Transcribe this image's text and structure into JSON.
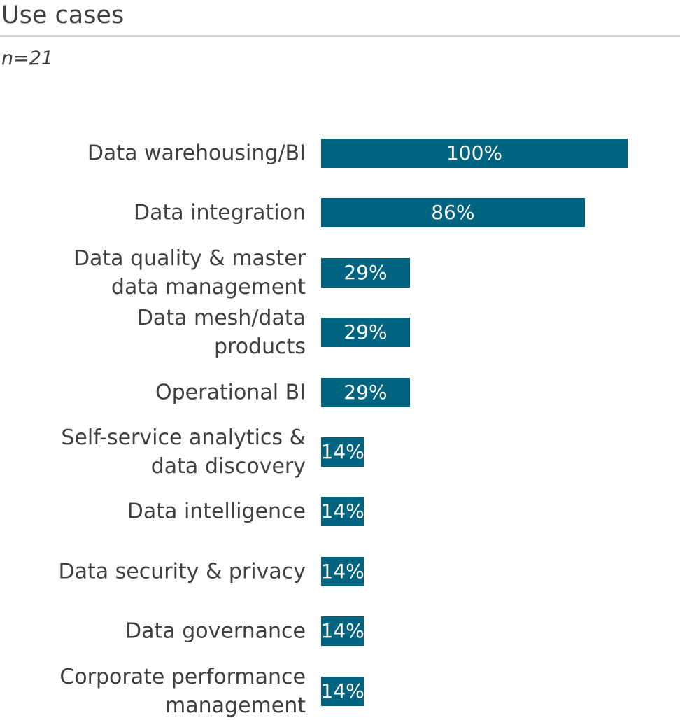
{
  "title": "Use cases",
  "subtitle": "n=21",
  "chart_data": {
    "type": "bar",
    "orientation": "horizontal",
    "title": "Use cases",
    "subtitle": "n=21",
    "categories": [
      "Data warehousing/BI",
      "Data integration",
      "Data quality & master data management",
      "Data mesh/data products",
      "Operational BI",
      "Self-service analytics & data discovery",
      "Data intelligence",
      "Data security & privacy",
      "Data governance",
      "Corporate performance management"
    ],
    "label_lines": [
      [
        "Data warehousing/BI"
      ],
      [
        "Data integration"
      ],
      [
        "Data quality & master",
        "data management"
      ],
      [
        "Data mesh/data",
        "products"
      ],
      [
        "Operational BI"
      ],
      [
        "Self-service analytics &",
        "data discovery"
      ],
      [
        "Data intelligence"
      ],
      [
        "Data security & privacy"
      ],
      [
        "Data governance"
      ],
      [
        "Corporate performance",
        "management"
      ]
    ],
    "values": [
      100,
      86,
      29,
      29,
      29,
      14,
      14,
      14,
      14,
      14
    ],
    "data_labels": [
      "100%",
      "86%",
      "29%",
      "29%",
      "29%",
      "14%",
      "14%",
      "14%",
      "14%",
      "14%"
    ],
    "xlim": [
      0,
      100
    ],
    "unit": "%",
    "grid": false,
    "color": "#006480"
  }
}
